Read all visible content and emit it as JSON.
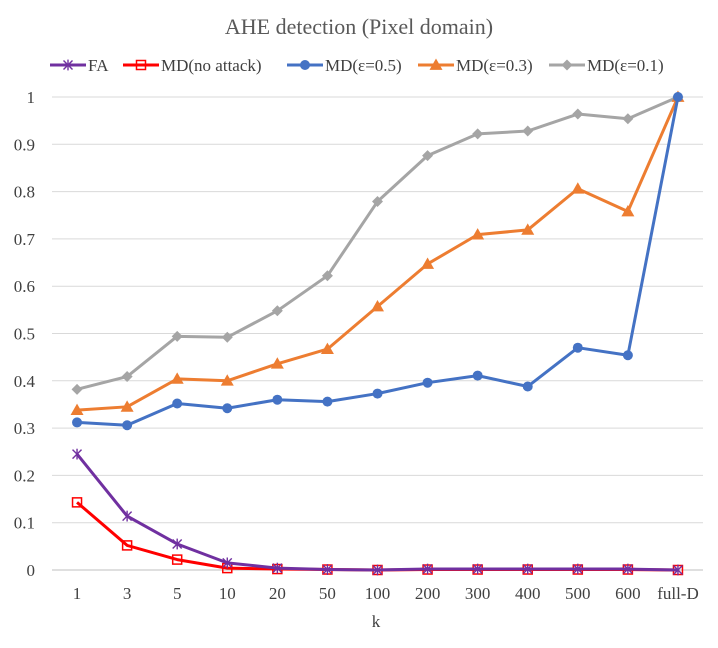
{
  "chart_data": {
    "type": "line",
    "title": "AHE detection (Pixel domain)",
    "xlabel": "k",
    "ylabel": "",
    "categories": [
      "1",
      "3",
      "5",
      "10",
      "20",
      "50",
      "100",
      "200",
      "300",
      "400",
      "500",
      "600",
      "full-D"
    ],
    "ylim": [
      0,
      1
    ],
    "yticks": [
      0,
      0.1,
      0.2,
      0.3,
      0.4,
      0.5,
      0.6,
      0.7,
      0.8,
      0.9,
      1
    ],
    "ytick_labels": [
      "0",
      "0.1",
      "0.2",
      "0.3",
      "0.4",
      "0.5",
      "0.6",
      "0.7",
      "0.8",
      "0.9",
      "1"
    ],
    "grid": "horizontal",
    "legend_position": "top",
    "series": [
      {
        "name": "FA",
        "color": "#7030a0",
        "marker": "star",
        "values": [
          0.245,
          0.114,
          0.055,
          0.015,
          0.004,
          0.001,
          0.0,
          0.002,
          0.002,
          0.002,
          0.002,
          0.002,
          0.0
        ]
      },
      {
        "name": "MD(no attack)",
        "color": "#ff0000",
        "marker": "square-open",
        "values": [
          0.143,
          0.052,
          0.022,
          0.004,
          0.002,
          0.001,
          0.0,
          0.001,
          0.001,
          0.001,
          0.001,
          0.001,
          0.0
        ]
      },
      {
        "name": "MD(ε=0.5)",
        "color": "#4472c4",
        "marker": "circle",
        "values": [
          0.312,
          0.306,
          0.352,
          0.342,
          0.36,
          0.356,
          0.373,
          0.396,
          0.411,
          0.388,
          0.47,
          0.454,
          1.0
        ]
      },
      {
        "name": "MD(ε=0.3)",
        "color": "#ed7d31",
        "marker": "triangle",
        "values": [
          0.338,
          0.345,
          0.404,
          0.4,
          0.436,
          0.467,
          0.557,
          0.647,
          0.709,
          0.719,
          0.806,
          0.758,
          1.0
        ]
      },
      {
        "name": "MD(ε=0.1)",
        "color": "#a5a5a5",
        "marker": "diamond",
        "values": [
          0.382,
          0.409,
          0.494,
          0.492,
          0.548,
          0.622,
          0.779,
          0.876,
          0.922,
          0.928,
          0.964,
          0.954,
          1.0
        ]
      }
    ]
  }
}
